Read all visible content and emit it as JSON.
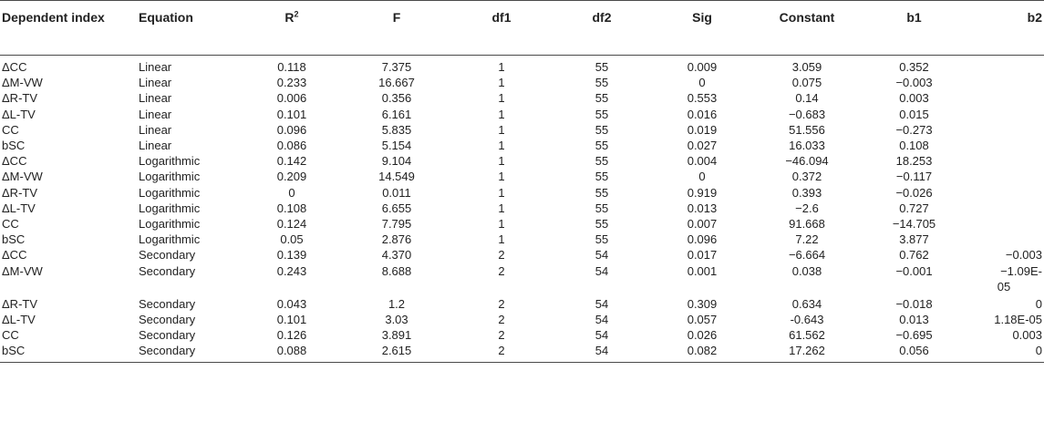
{
  "headers": {
    "dependent": "Dependent index",
    "equation": "Equation",
    "r2_base": "R",
    "r2_sup": "2",
    "f": "F",
    "df1": "df1",
    "df2": "df2",
    "sig": "Sig",
    "constant": "Constant",
    "b1": "b1",
    "b2": "b2"
  },
  "rows": [
    {
      "index": "ΔCC",
      "equation": "Linear",
      "r2": "0.118",
      "f": "7.375",
      "df1": "1",
      "df2": "55",
      "sig": "0.009",
      "constant": "3.059",
      "b1": "0.352",
      "b2": ""
    },
    {
      "index": "ΔM-VW",
      "equation": "Linear",
      "r2": "0.233",
      "f": "16.667",
      "df1": "1",
      "df2": "55",
      "sig": "0",
      "constant": "0.075",
      "b1": "−0.003",
      "b2": ""
    },
    {
      "index": "ΔR-TV",
      "equation": "Linear",
      "r2": "0.006",
      "f": "0.356",
      "df1": "1",
      "df2": "55",
      "sig": "0.553",
      "constant": "0.14",
      "b1": "0.003",
      "b2": ""
    },
    {
      "index": "ΔL-TV",
      "equation": "Linear",
      "r2": "0.101",
      "f": "6.161",
      "df1": "1",
      "df2": "55",
      "sig": "0.016",
      "constant": "−0.683",
      "b1": "0.015",
      "b2": ""
    },
    {
      "index": "CC",
      "equation": "Linear",
      "r2": "0.096",
      "f": "5.835",
      "df1": "1",
      "df2": "55",
      "sig": "0.019",
      "constant": "51.556",
      "b1": "−0.273",
      "b2": ""
    },
    {
      "index": "bSC",
      "equation": "Linear",
      "r2": "0.086",
      "f": "5.154",
      "df1": "1",
      "df2": "55",
      "sig": "0.027",
      "constant": "16.033",
      "b1": "0.108",
      "b2": ""
    },
    {
      "index": "ΔCC",
      "equation": "Logarithmic",
      "r2": "0.142",
      "f": "9.104",
      "df1": "1",
      "df2": "55",
      "sig": "0.004",
      "constant": "−46.094",
      "b1": "18.253",
      "b2": ""
    },
    {
      "index": "ΔM-VW",
      "equation": "Logarithmic",
      "r2": "0.209",
      "f": "14.549",
      "df1": "1",
      "df2": "55",
      "sig": "0",
      "constant": "0.372",
      "b1": "−0.117",
      "b2": ""
    },
    {
      "index": "ΔR-TV",
      "equation": "Logarithmic",
      "r2": "0",
      "f": "0.011",
      "df1": "1",
      "df2": "55",
      "sig": "0.919",
      "constant": "0.393",
      "b1": "−0.026",
      "b2": ""
    },
    {
      "index": "ΔL-TV",
      "equation": "Logarithmic",
      "r2": "0.108",
      "f": "6.655",
      "df1": "1",
      "df2": "55",
      "sig": "0.013",
      "constant": "−2.6",
      "b1": "0.727",
      "b2": ""
    },
    {
      "index": "CC",
      "equation": "Logarithmic",
      "r2": "0.124",
      "f": "7.795",
      "df1": "1",
      "df2": "55",
      "sig": "0.007",
      "constant": "91.668",
      "b1": "−14.705",
      "b2": ""
    },
    {
      "index": "bSC",
      "equation": "Logarithmic",
      "r2": "0.05",
      "f": "2.876",
      "df1": "1",
      "df2": "55",
      "sig": "0.096",
      "constant": "7.22",
      "b1": "3.877",
      "b2": ""
    },
    {
      "index": "ΔCC",
      "equation": "Secondary",
      "r2": "0.139",
      "f": "4.370",
      "df1": "2",
      "df2": "54",
      "sig": "0.017",
      "constant": "−6.664",
      "b1": "0.762",
      "b2": "−0.003"
    },
    {
      "index": "ΔM-VW",
      "equation": "Secondary",
      "r2": "0.243",
      "f": "8.688",
      "df1": "2",
      "df2": "54",
      "sig": "0.001",
      "constant": "0.038",
      "b1": "−0.001",
      "b2": "−1.09E-05"
    },
    {
      "index": "ΔR-TV",
      "equation": "Secondary",
      "r2": "0.043",
      "f": "1.2",
      "df1": "2",
      "df2": "54",
      "sig": "0.309",
      "constant": "0.634",
      "b1": "−0.018",
      "b2": "0"
    },
    {
      "index": "ΔL-TV",
      "equation": "Secondary",
      "r2": "0.101",
      "f": "3.03",
      "df1": "2",
      "df2": "54",
      "sig": "0.057",
      "constant": "-0.643",
      "b1": "0.013",
      "b2": "1.18E-05"
    },
    {
      "index": "CC",
      "equation": "Secondary",
      "r2": "0.126",
      "f": "3.891",
      "df1": "2",
      "df2": "54",
      "sig": "0.026",
      "constant": "61.562",
      "b1": "−0.695",
      "b2": "0.003"
    },
    {
      "index": "bSC",
      "equation": "Secondary",
      "r2": "0.088",
      "f": "2.615",
      "df1": "2",
      "df2": "54",
      "sig": "0.082",
      "constant": "17.262",
      "b1": "0.056",
      "b2": "0"
    }
  ]
}
